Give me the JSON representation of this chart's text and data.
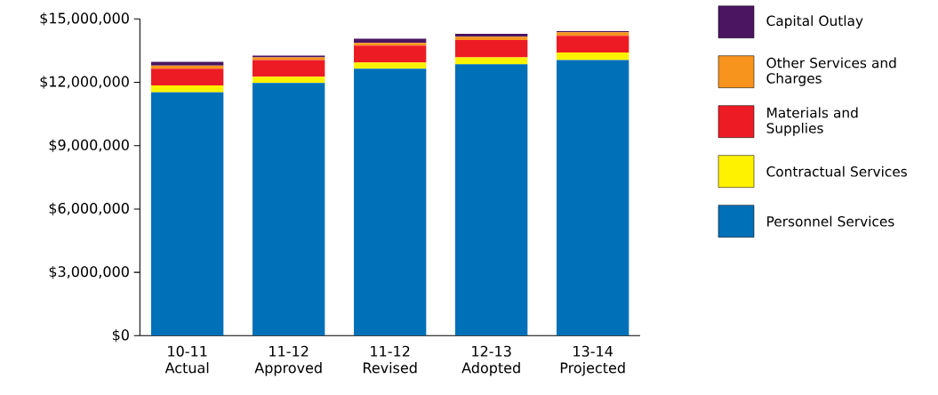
{
  "chart_data": {
    "type": "bar",
    "stacked": true,
    "categories": [
      "10-11 Actual",
      "11-12 Approved",
      "11-12 Revised",
      "12-13 Adopted",
      "13-14 Projected"
    ],
    "series": [
      {
        "name": "Personnel Services",
        "color": "#0070b8",
        "values": [
          11530000,
          11970000,
          12640000,
          12850000,
          13060000
        ]
      },
      {
        "name": "Contractual Services",
        "color": "#fff200",
        "values": [
          320000,
          300000,
          300000,
          330000,
          350000
        ]
      },
      {
        "name": "Materials and Supplies",
        "color": "#ed1c24",
        "values": [
          790000,
          790000,
          800000,
          820000,
          790000
        ]
      },
      {
        "name": "Other Services and Charges",
        "color": "#f7941d",
        "values": [
          150000,
          120000,
          130000,
          160000,
          170000
        ]
      },
      {
        "name": "Capital Outlay",
        "color": "#4b1561",
        "values": [
          180000,
          90000,
          200000,
          140000,
          50000
        ]
      }
    ],
    "ylim": [
      0,
      15000000
    ],
    "yticks": [
      {
        "value": 0,
        "label": "$0"
      },
      {
        "value": 3000000,
        "label": "$3,000,000"
      },
      {
        "value": 6000000,
        "label": "$6,000,000"
      },
      {
        "value": 9000000,
        "label": "$9,000,000"
      },
      {
        "value": 12000000,
        "label": "$12,000,000"
      },
      {
        "value": 15000000,
        "label": "$15,000,000"
      }
    ],
    "legend": "right",
    "grid": false
  }
}
